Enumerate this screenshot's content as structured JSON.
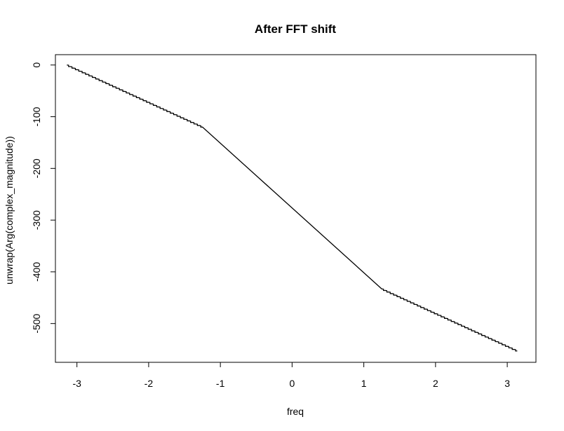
{
  "chart_data": {
    "type": "line",
    "title": "After FFT shift",
    "xlabel": "freq",
    "ylabel": "unwrap(Arg(complex_magnitude))",
    "xlim": [
      -3.3,
      3.4
    ],
    "ylim": [
      -575,
      20
    ],
    "x_ticks": [
      -3,
      -2,
      -1,
      0,
      1,
      2,
      3
    ],
    "y_ticks": [
      0,
      -100,
      -200,
      -300,
      -400,
      -500
    ],
    "grid": false,
    "legend": "none",
    "series": [
      {
        "x": [
          -3.14,
          -1.25,
          1.25,
          3.14
        ],
        "y": [
          0,
          -120,
          -433,
          -553
        ],
        "step_amplitude": 2.5,
        "step_count_left": 40,
        "step_count_right": 40
      }
    ]
  }
}
